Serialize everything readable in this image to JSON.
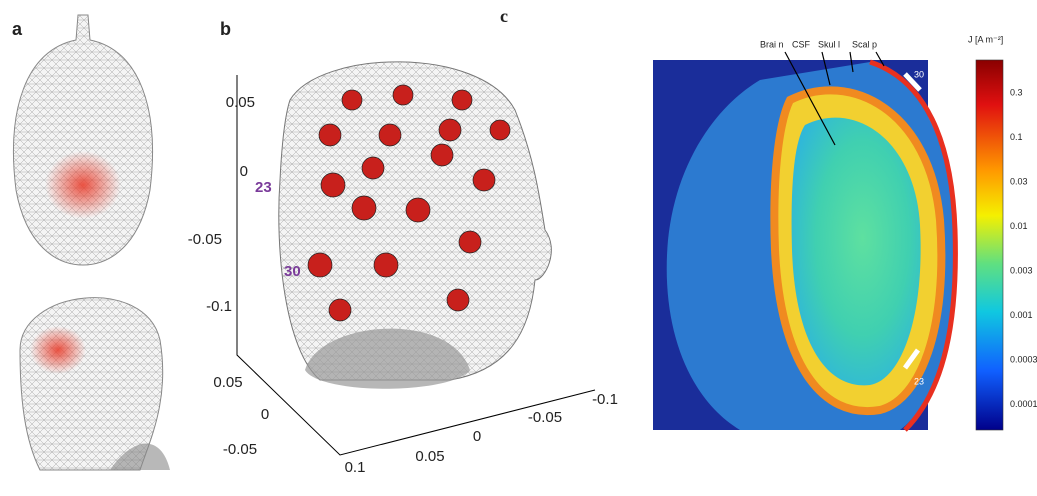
{
  "panels": [
    {
      "label": "a"
    },
    {
      "label": "b",
      "z_axis_ticks": [
        "0.05",
        "0",
        "-0.05",
        "-0.1"
      ],
      "side_axis_ticks": [
        "0.05",
        "0",
        "-0.05"
      ],
      "front_axis_ticks": [
        "0.1",
        "0.05",
        "0",
        "-0.05",
        "-0.1"
      ],
      "electrode_labels": [
        "23",
        "30"
      ]
    },
    {
      "label": "c",
      "tissue_labels": [
        "Brai n",
        "CSF",
        "Skul l",
        "Scal p"
      ],
      "electrode_labels": [
        "30",
        "23"
      ],
      "colorbar": {
        "title": "J [A m⁻²]",
        "ticks": [
          "0.3",
          "0.1",
          "0.03",
          "0.01",
          "0.003",
          "0.001",
          "0.0003",
          "0.0001"
        ]
      }
    }
  ]
}
